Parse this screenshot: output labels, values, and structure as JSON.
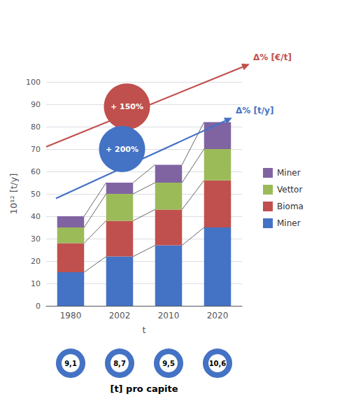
{
  "chart_data": {
    "type": "bar",
    "stacked": true,
    "categories": [
      "1980",
      "2002",
      "2010",
      "2020"
    ],
    "series": [
      {
        "name": "Miner",
        "color": "#4472C4",
        "values": [
          15,
          22,
          27,
          35
        ]
      },
      {
        "name": "Bioma",
        "color": "#C0504D",
        "values": [
          13,
          16,
          16,
          21
        ]
      },
      {
        "name": "Vettor",
        "color": "#9BBB59",
        "values": [
          7,
          12,
          12,
          14
        ]
      },
      {
        "name": "Miner",
        "color": "#8064A2",
        "values": [
          5,
          5,
          8,
          12
        ]
      }
    ],
    "xlabel": "t",
    "ylabel": "10¹² [t/y]",
    "ylim": [
      0,
      100
    ],
    "yticks": [
      0,
      10,
      20,
      30,
      40,
      50,
      60,
      70,
      80,
      90,
      100
    ],
    "grid": true,
    "legend": "right",
    "annotations": [
      {
        "type": "arrow",
        "text": "Δ% [€/t]",
        "color": "#C0504D"
      },
      {
        "type": "arrow",
        "text": "Δ% [t/y]",
        "color": "#4472C4"
      },
      {
        "type": "circle",
        "text": "+ 150%",
        "color": "#C0504D"
      },
      {
        "type": "circle",
        "text": "+ 200%",
        "color": "#4472C4"
      }
    ],
    "pro_capite": {
      "title": "[t] pro capite",
      "color": "#4472C4",
      "values": [
        9.1,
        8.7,
        9.5,
        10.6
      ],
      "value_labels": [
        "9,1",
        "8,7",
        "9,5",
        "10,6"
      ]
    }
  }
}
